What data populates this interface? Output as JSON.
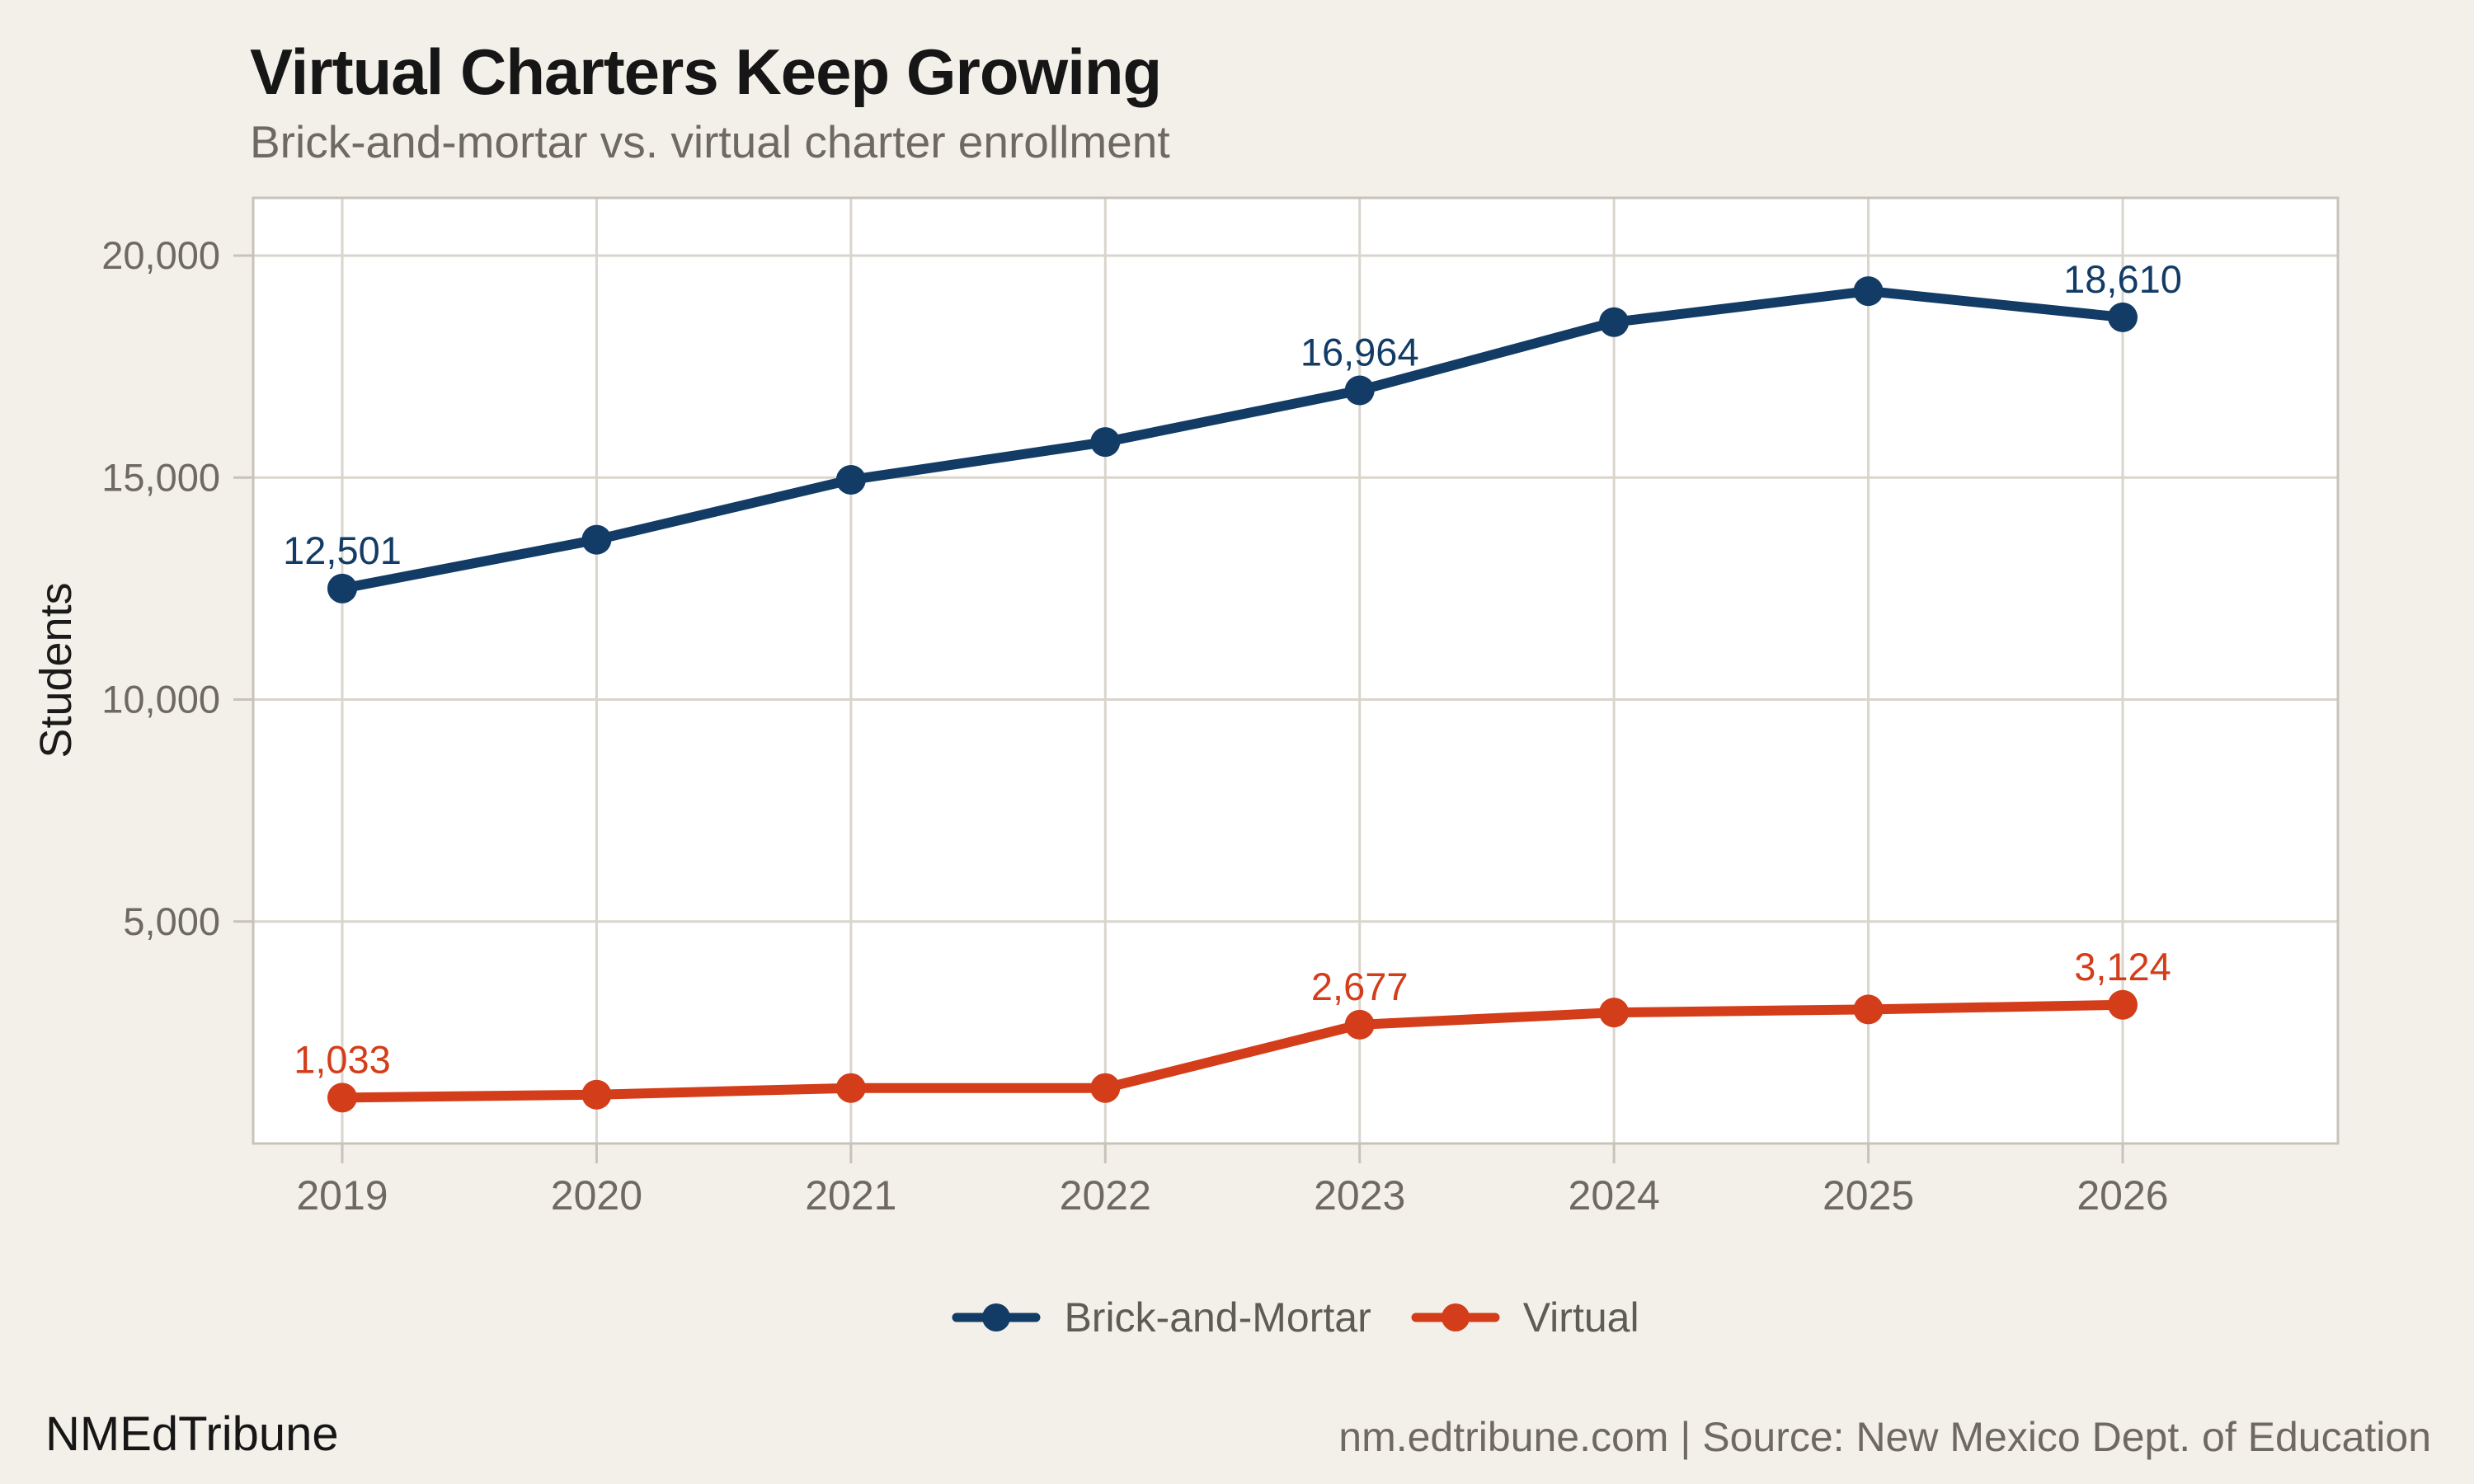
{
  "header": {
    "title": "Virtual Charters Keep Growing",
    "subtitle": "Brick-and-mortar vs. virtual charter enrollment"
  },
  "chart_data": {
    "type": "line",
    "title": "Virtual Charters Keep Growing",
    "subtitle": "Brick-and-mortar vs. virtual charter enrollment",
    "xlabel": "",
    "ylabel": "Students",
    "categories": [
      "2019",
      "2020",
      "2021",
      "2022",
      "2023",
      "2024",
      "2025",
      "2026"
    ],
    "y_axis": {
      "range": [
        0,
        21300
      ],
      "ticks": [
        {
          "value": 5000,
          "label": "5,000"
        },
        {
          "value": 10000,
          "label": "10,000"
        },
        {
          "value": 15000,
          "label": "15,000"
        },
        {
          "value": 20000,
          "label": "20,000"
        }
      ]
    },
    "grid": true,
    "legend_position": "bottom",
    "series": [
      {
        "name": "Brick-and-Mortar",
        "color": "#123C66",
        "values": [
          12501,
          13600,
          14950,
          15800,
          16964,
          18500,
          19200,
          18610
        ],
        "point_labels": [
          {
            "index": 0,
            "text": "12,501"
          },
          {
            "index": 4,
            "text": "16,964"
          },
          {
            "index": 7,
            "text": "18,610"
          }
        ]
      },
      {
        "name": "Virtual",
        "color": "#D43D1A",
        "values": [
          1033,
          1100,
          1250,
          1250,
          2677,
          2950,
          3020,
          3124
        ],
        "point_labels": [
          {
            "index": 0,
            "text": "1,033"
          },
          {
            "index": 4,
            "text": "2,677"
          },
          {
            "index": 7,
            "text": "3,124"
          }
        ]
      }
    ]
  },
  "footer": {
    "brand": "NMEdTribune",
    "attribution": "nm.edtribune.com | Source: New Mexico Dept. of Education"
  },
  "colors": {
    "background": "#F3F0E9",
    "panel": "#FFFFFF",
    "grid": "#DAD5CC",
    "panel_border": "#C8C3BA",
    "axis_text": "#6E6A63",
    "title_text": "#161616",
    "subtitle_text": "#6E6A63",
    "legend_text": "#5F5B55",
    "footer_text": "#6E6A63",
    "brand_text": "#161616"
  }
}
